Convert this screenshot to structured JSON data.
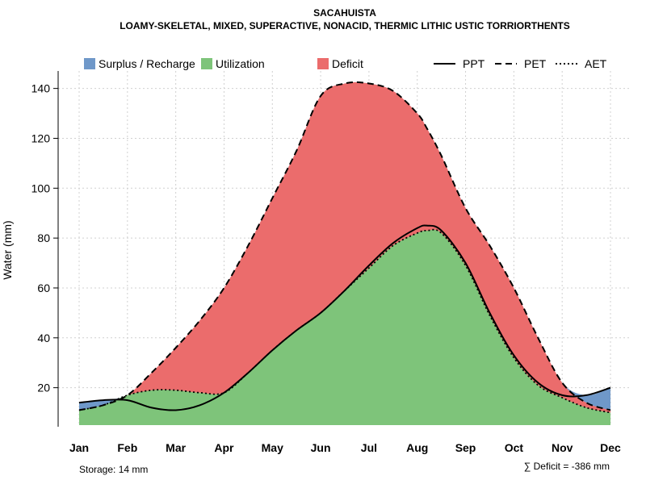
{
  "chart_data": {
    "type": "area",
    "title": "SACAHUISTA",
    "subtitle": "LOAMY-SKELETAL, MIXED, SUPERACTIVE, NONACID, THERMIC LITHIC USTIC TORRIORTHENTS",
    "xlabel": "",
    "ylabel": "Water (mm)",
    "ylim": [
      5,
      147
    ],
    "yticks": [
      20,
      40,
      60,
      80,
      100,
      120,
      140
    ],
    "grid": true,
    "categories": [
      "Jan",
      "Feb",
      "Mar",
      "Apr",
      "May",
      "Jun",
      "Jul",
      "Aug",
      "Sep",
      "Oct",
      "Nov",
      "Dec"
    ],
    "x": [
      1,
      1.5,
      2,
      2.5,
      3,
      3.5,
      4,
      4.5,
      5,
      5.5,
      6,
      6.5,
      7,
      7.5,
      8,
      8.2,
      8.5,
      9,
      9.5,
      10,
      10.5,
      11,
      11.5,
      12
    ],
    "series": [
      {
        "name": "PPT",
        "style": "solid",
        "values": [
          14,
          15,
          15,
          12,
          11,
          13,
          18,
          26,
          35,
          43,
          50,
          59,
          69,
          78,
          84,
          85,
          83,
          70,
          50,
          33,
          22,
          17,
          17,
          20
        ]
      },
      {
        "name": "PET",
        "style": "dashed",
        "values": [
          11,
          13,
          17,
          26,
          36,
          47,
          60,
          77,
          96,
          115,
          137,
          142,
          142,
          139,
          130,
          124,
          113,
          92,
          77,
          60,
          40,
          22,
          14,
          11
        ]
      },
      {
        "name": "AET",
        "style": "dotted",
        "values": [
          11,
          13,
          17,
          19,
          19,
          18,
          18,
          26,
          35,
          43,
          50,
          59,
          68,
          77,
          82,
          83,
          82,
          69,
          49,
          32,
          21,
          16,
          12,
          10
        ]
      }
    ],
    "areas": [
      {
        "name": "Surplus / Recharge",
        "color": "#6f98c9"
      },
      {
        "name": "Utilization",
        "color": "#7ec47a"
      },
      {
        "name": "Deficit",
        "color": "#eb6c6c"
      }
    ],
    "lines": [
      {
        "name": "PPT"
      },
      {
        "name": "PET"
      },
      {
        "name": "AET"
      }
    ],
    "legend_position": "top",
    "storage": "Storage: 14 mm",
    "deficit_total": "∑ Deficit = -386 mm"
  }
}
